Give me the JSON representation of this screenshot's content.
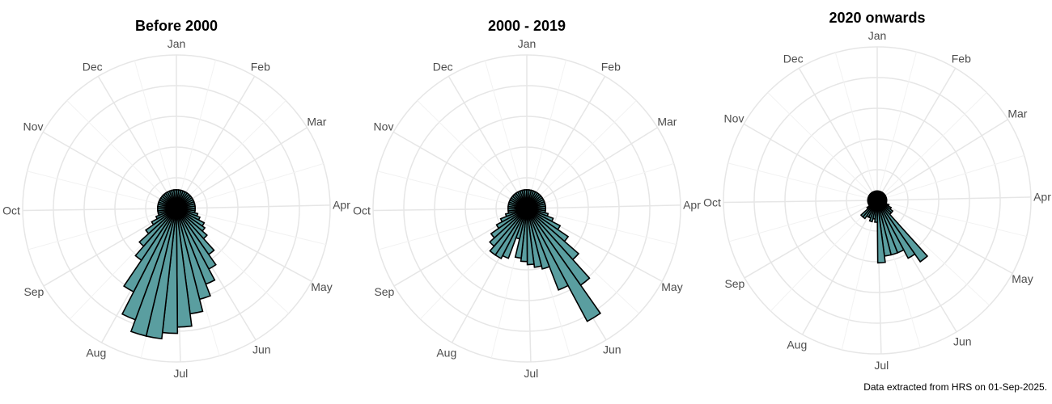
{
  "caption": "Data extracted from HRS on 01-Sep-2025.",
  "colors": {
    "bar_fill": "#5a9ea0",
    "bar_stroke": "#000000",
    "grid": "#e6e6e6",
    "label": "#4d4d4d"
  },
  "chart_data": [
    {
      "type": "polar-bar",
      "title": "Before 2000",
      "month_labels": [
        "Jan",
        "Feb",
        "Mar",
        "Apr",
        "May",
        "Jun",
        "Jul",
        "Aug",
        "Sep",
        "Oct",
        "Nov",
        "Dec"
      ],
      "grid_rings": 5,
      "start_day": 1,
      "bin_days": 7,
      "values": [
        0.3,
        0.3,
        0.3,
        0.3,
        0.3,
        0.3,
        0.3,
        0.3,
        0.3,
        0.3,
        0.3,
        0.3,
        0.3,
        0.3,
        0.3,
        0.35,
        0.4,
        0.5,
        0.55,
        0.65,
        0.9,
        1.1,
        1.3,
        1.5,
        1.7,
        1.9,
        2.0,
        2.1,
        2.1,
        1.9,
        1.5,
        1.0,
        0.8,
        0.6,
        0.45,
        0.35,
        0.3,
        0.3,
        0.3,
        0.3,
        0.3,
        0.3,
        0.3,
        0.3,
        0.3,
        0.3,
        0.3,
        0.3,
        0.3,
        0.3,
        0.3,
        0.3
      ]
    },
    {
      "type": "polar-bar",
      "title": "2000 - 2019",
      "month_labels": [
        "Jan",
        "Feb",
        "Mar",
        "Apr",
        "May",
        "Jun",
        "Jul",
        "Aug",
        "Sep",
        "Oct",
        "Nov",
        "Dec"
      ],
      "grid_rings": 5,
      "start_day": 1,
      "bin_days": 7,
      "values": [
        0.3,
        0.3,
        0.3,
        0.3,
        0.3,
        0.3,
        0.3,
        0.3,
        0.3,
        0.3,
        0.3,
        0.3,
        0.3,
        0.3,
        0.3,
        0.35,
        0.45,
        0.6,
        0.8,
        1.1,
        1.5,
        2.05,
        1.4,
        1.0,
        0.95,
        0.9,
        0.85,
        0.8,
        0.5,
        0.85,
        0.9,
        0.9,
        0.8,
        0.7,
        0.55,
        0.45,
        0.35,
        0.3,
        0.3,
        0.3,
        0.3,
        0.3,
        0.3,
        0.3,
        0.3,
        0.3,
        0.3,
        0.3,
        0.3,
        0.3,
        0.3,
        0.3
      ]
    },
    {
      "type": "polar-bar",
      "title": "2020 onwards",
      "month_labels": [
        "Jan",
        "Feb",
        "Mar",
        "Apr",
        "May",
        "Jun",
        "Jul",
        "Aug",
        "Sep",
        "Oct",
        "Nov",
        "Dec"
      ],
      "grid_rings": 5,
      "start_day": 1,
      "bin_days": 7,
      "values": [
        0.15,
        0.15,
        0.15,
        0.15,
        0.15,
        0.15,
        0.15,
        0.15,
        0.15,
        0.15,
        0.15,
        0.15,
        0.15,
        0.15,
        0.15,
        0.15,
        0.2,
        0.25,
        0.3,
        0.3,
        1.2,
        1.05,
        0.9,
        0.9,
        0.9,
        1.0,
        0.35,
        0.3,
        0.35,
        0.3,
        0.3,
        0.35,
        0.35,
        0.2,
        0.15,
        0.15,
        0.15,
        0.15,
        0.15,
        0.15,
        0.15,
        0.15,
        0.15,
        0.15,
        0.15,
        0.15,
        0.15,
        0.15,
        0.15,
        0.15,
        0.15,
        0.15
      ]
    }
  ]
}
